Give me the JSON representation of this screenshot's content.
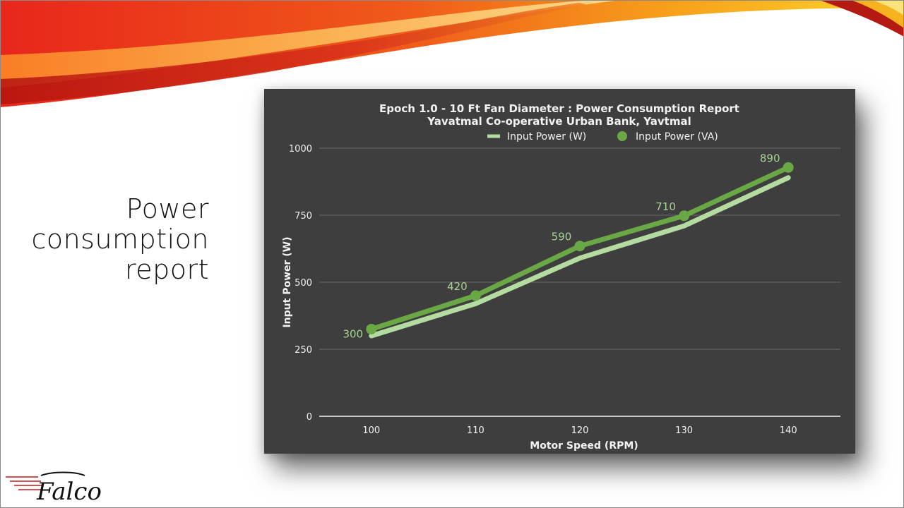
{
  "slide": {
    "title_lines": [
      "Power",
      "consumption",
      "report"
    ],
    "logo_text": "Falco"
  },
  "colors": {
    "background": "#ffffff",
    "chart_bg": "#3e3e3e",
    "series_w": "#b5dca0",
    "series_va": "#6aa846",
    "label_text": "#a6d394",
    "axis_text": "#f2f2f2",
    "gridline": "#6b6b6b"
  },
  "chart_data": {
    "type": "line",
    "title": "Epoch 1.0 - 10 Ft Fan Diameter : Power Consumption Report",
    "subtitle": "Yavatmal Co-operative Urban Bank, Yavtmal",
    "xlabel": "Motor Speed (RPM)",
    "ylabel": "Input Power (W)",
    "x": [
      100,
      110,
      120,
      130,
      140
    ],
    "x_tick_labels": [
      "100",
      "110",
      "120",
      "130",
      "140"
    ],
    "x_range": [
      95,
      145
    ],
    "ylim": [
      0,
      1000
    ],
    "y_ticks": [
      0,
      250,
      500,
      750,
      1000
    ],
    "y_tick_labels": [
      "0",
      "250",
      "500",
      "750",
      "1000"
    ],
    "grid": "horizontal",
    "legend": "top-center",
    "series": [
      {
        "name": "Input Power (W)",
        "values": [
          300,
          420,
          590,
          710,
          890
        ],
        "data_labels": [
          "300",
          "420",
          "590",
          "710",
          "890"
        ]
      },
      {
        "name": "Input Power (VA)",
        "values": [
          325,
          450,
          635,
          748,
          928
        ]
      }
    ]
  }
}
